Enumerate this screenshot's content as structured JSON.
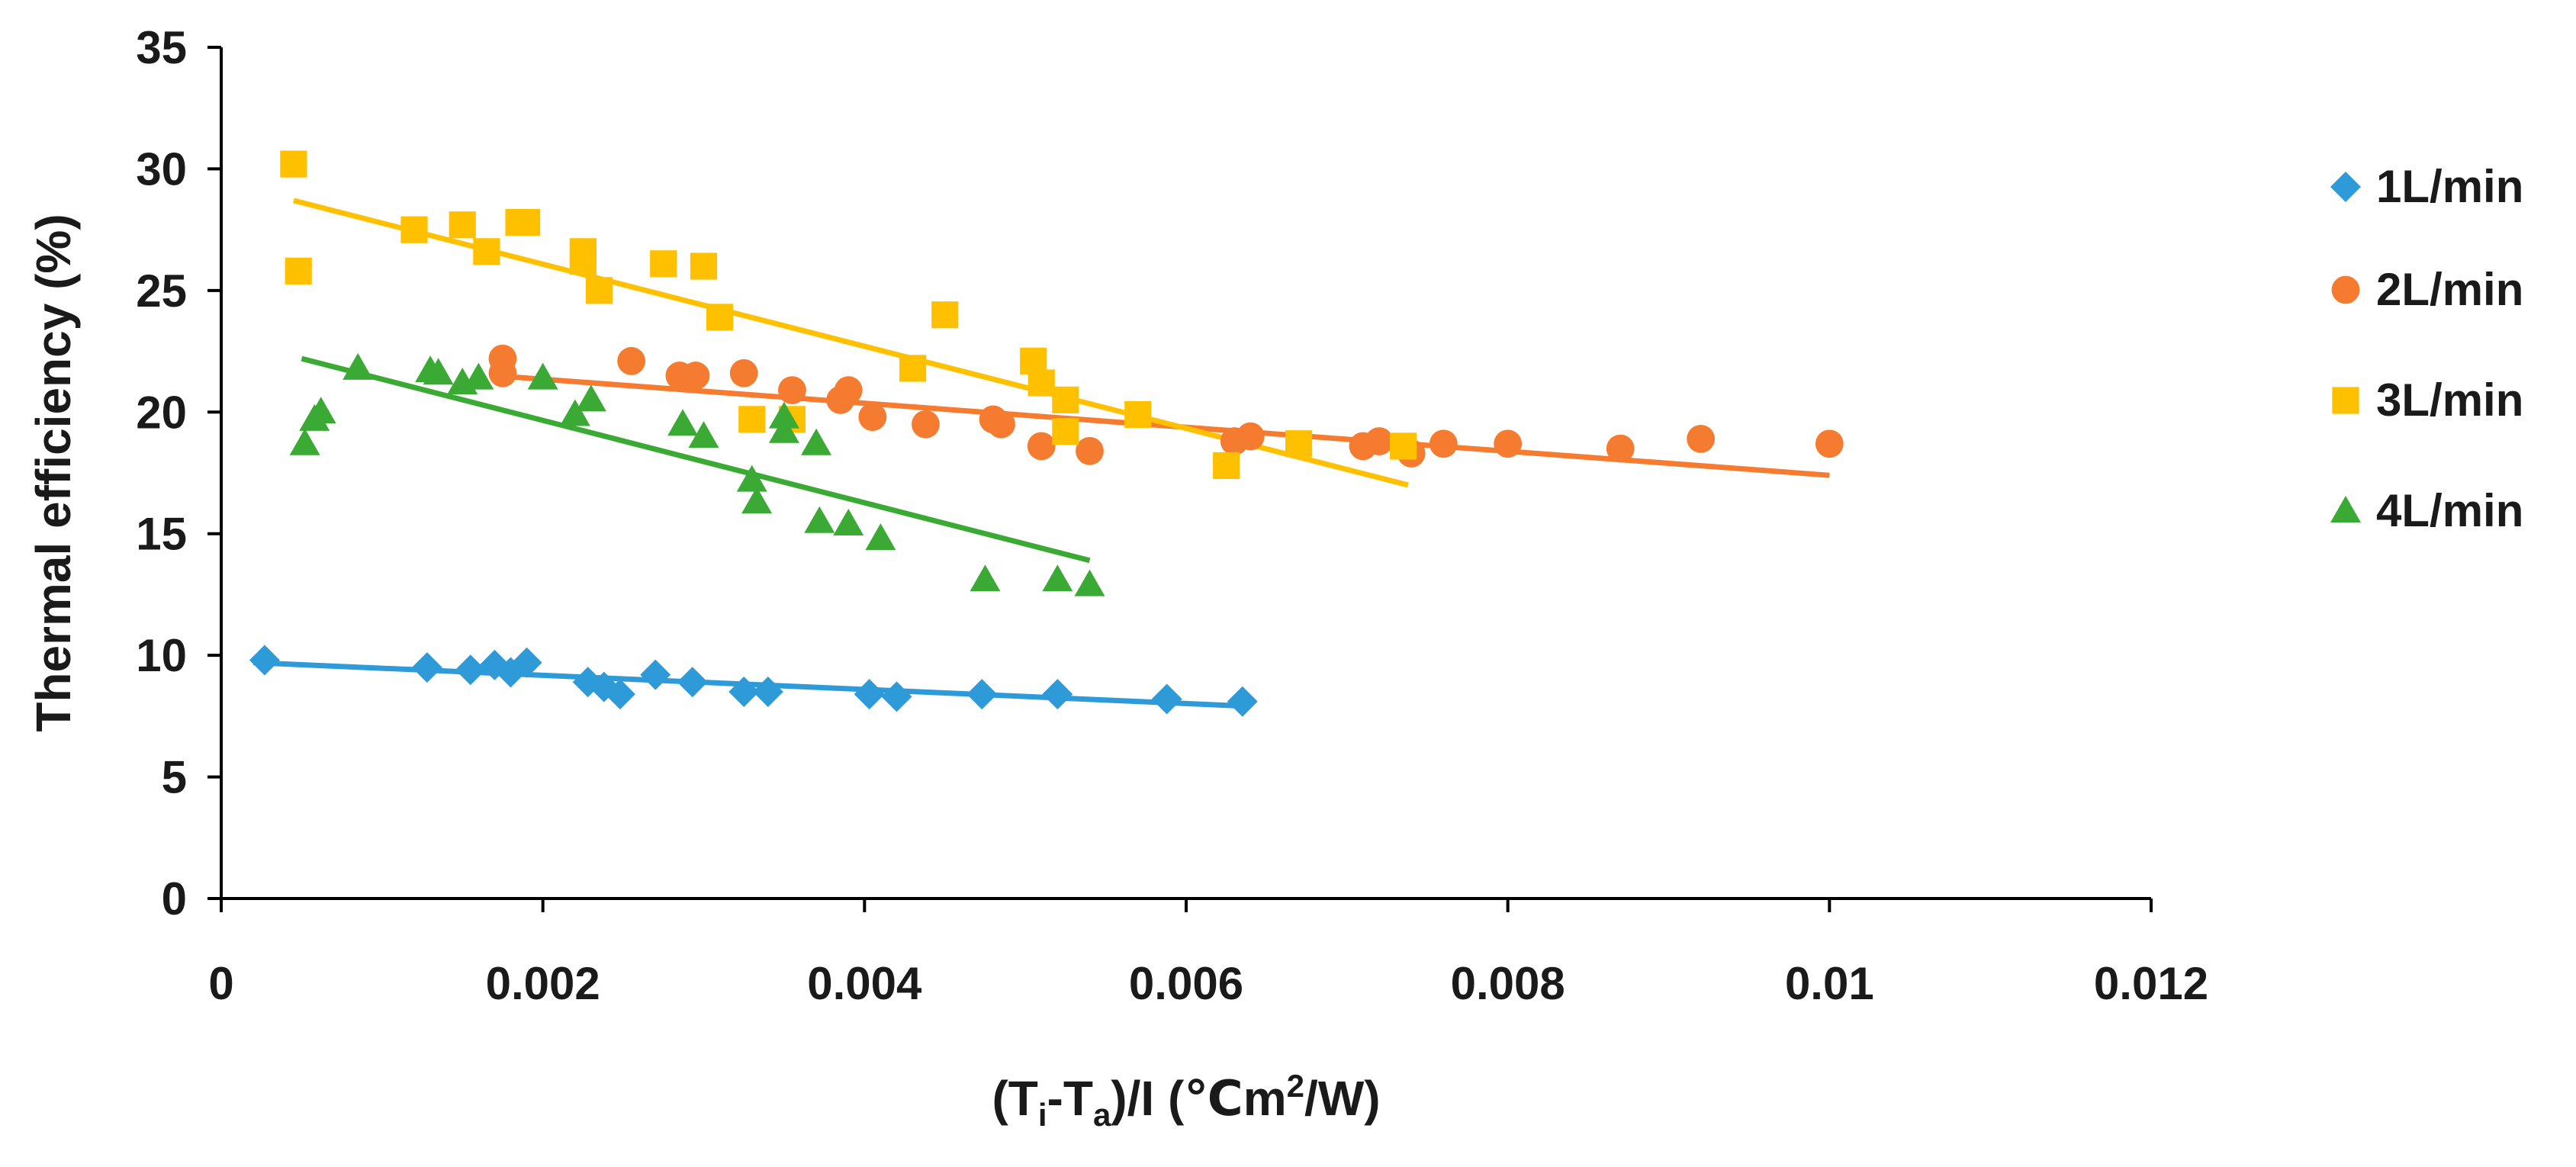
{
  "chart_data": {
    "type": "scatter",
    "title": "",
    "xlabel": "(Ti-Ta)/I (℃m2/W)",
    "xlabel_parts": {
      "open": "(T",
      "sub1": "i",
      "dash": "-T",
      "sub2": "a",
      "middle": ")/I (℃m",
      "sup": "2",
      "close": "/W)"
    },
    "ylabel": "Thermal efficiency (%)",
    "xlim": [
      0,
      0.012
    ],
    "ylim": [
      0,
      35
    ],
    "x_ticks": [
      0,
      0.002,
      0.004,
      0.006,
      0.008,
      0.01,
      0.012
    ],
    "x_tick_labels": [
      "0",
      "0.002",
      "0.004",
      "0.006",
      "0.008",
      "0.01",
      "0.012"
    ],
    "y_ticks": [
      0,
      5,
      10,
      15,
      20,
      25,
      30,
      35
    ],
    "y_tick_labels": [
      "0",
      "5",
      "10",
      "15",
      "20",
      "25",
      "30",
      "35"
    ],
    "grid": false,
    "legend_position": "right",
    "series": [
      {
        "name": "1L/min",
        "marker": "diamond",
        "color": "#2E9AD8",
        "points": [
          [
            0.00027,
            9.8
          ],
          [
            0.00128,
            9.5
          ],
          [
            0.00155,
            9.4
          ],
          [
            0.0017,
            9.6
          ],
          [
            0.0018,
            9.3
          ],
          [
            0.0019,
            9.7
          ],
          [
            0.00228,
            8.9
          ],
          [
            0.00238,
            8.7
          ],
          [
            0.00248,
            8.4
          ],
          [
            0.0027,
            9.2
          ],
          [
            0.00293,
            8.9
          ],
          [
            0.00325,
            8.5
          ],
          [
            0.0034,
            8.5
          ],
          [
            0.00403,
            8.4
          ],
          [
            0.0042,
            8.3
          ],
          [
            0.00473,
            8.4
          ],
          [
            0.0052,
            8.4
          ],
          [
            0.00588,
            8.2
          ],
          [
            0.00635,
            8.1
          ]
        ],
        "trendline": [
          [
            0.0002,
            9.7
          ],
          [
            0.0064,
            7.9
          ]
        ]
      },
      {
        "name": "2L/min",
        "marker": "circle",
        "color": "#F47B2F",
        "points": [
          [
            0.00175,
            22.2
          ],
          [
            0.00175,
            21.6
          ],
          [
            0.00255,
            22.1
          ],
          [
            0.00285,
            21.5
          ],
          [
            0.00295,
            21.5
          ],
          [
            0.00325,
            21.6
          ],
          [
            0.00355,
            20.9
          ],
          [
            0.00385,
            20.5
          ],
          [
            0.0039,
            20.9
          ],
          [
            0.00405,
            19.8
          ],
          [
            0.00438,
            19.5
          ],
          [
            0.0048,
            19.7
          ],
          [
            0.00485,
            19.5
          ],
          [
            0.0051,
            18.6
          ],
          [
            0.0054,
            18.4
          ],
          [
            0.0063,
            18.8
          ],
          [
            0.0064,
            19.0
          ],
          [
            0.0071,
            18.6
          ],
          [
            0.0072,
            18.8
          ],
          [
            0.0074,
            18.3
          ],
          [
            0.0076,
            18.7
          ],
          [
            0.008,
            18.7
          ],
          [
            0.0087,
            18.5
          ],
          [
            0.0092,
            18.9
          ],
          [
            0.01,
            18.7
          ]
        ],
        "trendline": [
          [
            0.0017,
            21.5
          ],
          [
            0.01,
            17.4
          ]
        ]
      },
      {
        "name": "3L/min",
        "marker": "square",
        "color": "#FFC000",
        "points": [
          [
            0.00045,
            30.2
          ],
          [
            0.00048,
            25.8
          ],
          [
            0.0012,
            27.5
          ],
          [
            0.0015,
            27.7
          ],
          [
            0.00165,
            26.6
          ],
          [
            0.00185,
            27.8
          ],
          [
            0.0019,
            27.8
          ],
          [
            0.00225,
            26.6
          ],
          [
            0.00225,
            26.2
          ],
          [
            0.00235,
            25.0
          ],
          [
            0.00275,
            26.1
          ],
          [
            0.003,
            26.0
          ],
          [
            0.0031,
            23.9
          ],
          [
            0.0033,
            19.7
          ],
          [
            0.00355,
            19.7
          ],
          [
            0.0043,
            21.8
          ],
          [
            0.0045,
            24.0
          ],
          [
            0.00505,
            22.1
          ],
          [
            0.0051,
            21.2
          ],
          [
            0.00525,
            20.5
          ],
          [
            0.00525,
            19.2
          ],
          [
            0.0057,
            19.9
          ],
          [
            0.00625,
            17.8
          ],
          [
            0.0067,
            18.7
          ],
          [
            0.00735,
            18.6
          ]
        ],
        "trendline": [
          [
            0.00045,
            28.7
          ],
          [
            0.00738,
            17.0
          ]
        ]
      },
      {
        "name": "4L/min",
        "marker": "triangle",
        "color": "#3BAA35",
        "points": [
          [
            0.00052,
            18.7
          ],
          [
            0.00058,
            19.7
          ],
          [
            0.00062,
            20.0
          ],
          [
            0.00085,
            21.8
          ],
          [
            0.0013,
            21.7
          ],
          [
            0.00135,
            21.6
          ],
          [
            0.0015,
            21.2
          ],
          [
            0.0016,
            21.4
          ],
          [
            0.002,
            21.4
          ],
          [
            0.0022,
            19.9
          ],
          [
            0.0023,
            20.5
          ],
          [
            0.00287,
            19.5
          ],
          [
            0.003,
            19.0
          ],
          [
            0.0033,
            17.2
          ],
          [
            0.00333,
            16.3
          ],
          [
            0.0035,
            19.2
          ],
          [
            0.0035,
            19.8
          ],
          [
            0.0037,
            18.7
          ],
          [
            0.00372,
            15.5
          ],
          [
            0.0039,
            15.4
          ],
          [
            0.0041,
            14.8
          ],
          [
            0.00475,
            13.1
          ],
          [
            0.0052,
            13.1
          ],
          [
            0.0054,
            12.9
          ]
        ],
        "trendline": [
          [
            0.0005,
            22.2
          ],
          [
            0.0054,
            13.9
          ]
        ]
      }
    ]
  }
}
